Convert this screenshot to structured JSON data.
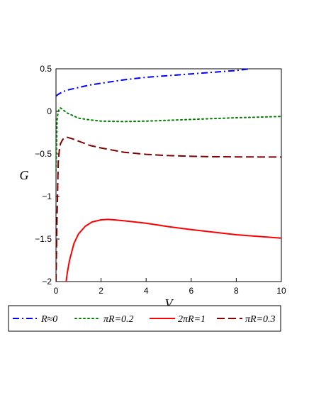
{
  "chart_data": {
    "type": "line",
    "xlabel": "V",
    "ylabel": "G",
    "xlim": [
      0,
      10
    ],
    "ylim": [
      -2,
      0.5
    ],
    "x_ticks": [
      0,
      2,
      4,
      6,
      8,
      10
    ],
    "x_tick_labels": [
      "0",
      "2",
      "4",
      "6",
      "8",
      "10"
    ],
    "y_ticks": [
      0.5,
      0,
      -0.5,
      -1,
      -1.5,
      -2
    ],
    "y_tick_labels": [
      "0.5",
      "0",
      "-0.5",
      "-1",
      "-1.5",
      "-2"
    ],
    "grid": false,
    "legend_position": "bottom",
    "series": [
      {
        "name": "R≈0",
        "color": "#0000ff",
        "style": "dash-dot",
        "x": [
          0,
          0.1,
          0.3,
          0.5,
          1,
          1.5,
          2,
          3,
          4,
          5,
          6,
          7,
          8,
          8.6
        ],
        "y": [
          0.18,
          0.2,
          0.23,
          0.25,
          0.28,
          0.31,
          0.33,
          0.37,
          0.4,
          0.42,
          0.44,
          0.46,
          0.48,
          0.5
        ]
      },
      {
        "name": "πR=0.2",
        "color": "#008000",
        "style": "dotted",
        "x": [
          0,
          0.05,
          0.1,
          0.15,
          0.2,
          0.3,
          0.5,
          1,
          1.5,
          2,
          3,
          4,
          5,
          6,
          7,
          8,
          9,
          10
        ],
        "y": [
          -0.7,
          -0.1,
          0.0,
          0.03,
          0.04,
          0.02,
          -0.02,
          -0.08,
          -0.1,
          -0.115,
          -0.12,
          -0.115,
          -0.105,
          -0.095,
          -0.085,
          -0.075,
          -0.068,
          -0.06
        ]
      },
      {
        "name": "2πR=1",
        "color": "#ff0000",
        "style": "solid",
        "x": [
          0.45,
          0.5,
          0.6,
          0.8,
          1,
          1.3,
          1.6,
          2,
          2.3,
          2.6,
          3,
          4,
          5,
          6,
          7,
          8,
          9,
          10
        ],
        "y": [
          -2.0,
          -1.9,
          -1.75,
          -1.55,
          -1.44,
          -1.35,
          -1.3,
          -1.275,
          -1.27,
          -1.275,
          -1.285,
          -1.315,
          -1.355,
          -1.39,
          -1.42,
          -1.45,
          -1.47,
          -1.49
        ]
      },
      {
        "name": "πR=0.3",
        "color": "#800000",
        "style": "dashed",
        "x": [
          0,
          0.05,
          0.1,
          0.15,
          0.2,
          0.3,
          0.4,
          0.5,
          0.7,
          1,
          1.5,
          2,
          3,
          4,
          5,
          6,
          7,
          8,
          9,
          10
        ],
        "y": [
          -2.0,
          -1.2,
          -0.6,
          -0.45,
          -0.38,
          -0.33,
          -0.31,
          -0.305,
          -0.32,
          -0.35,
          -0.4,
          -0.43,
          -0.48,
          -0.505,
          -0.52,
          -0.528,
          -0.533,
          -0.535,
          -0.536,
          -0.536
        ]
      }
    ]
  }
}
